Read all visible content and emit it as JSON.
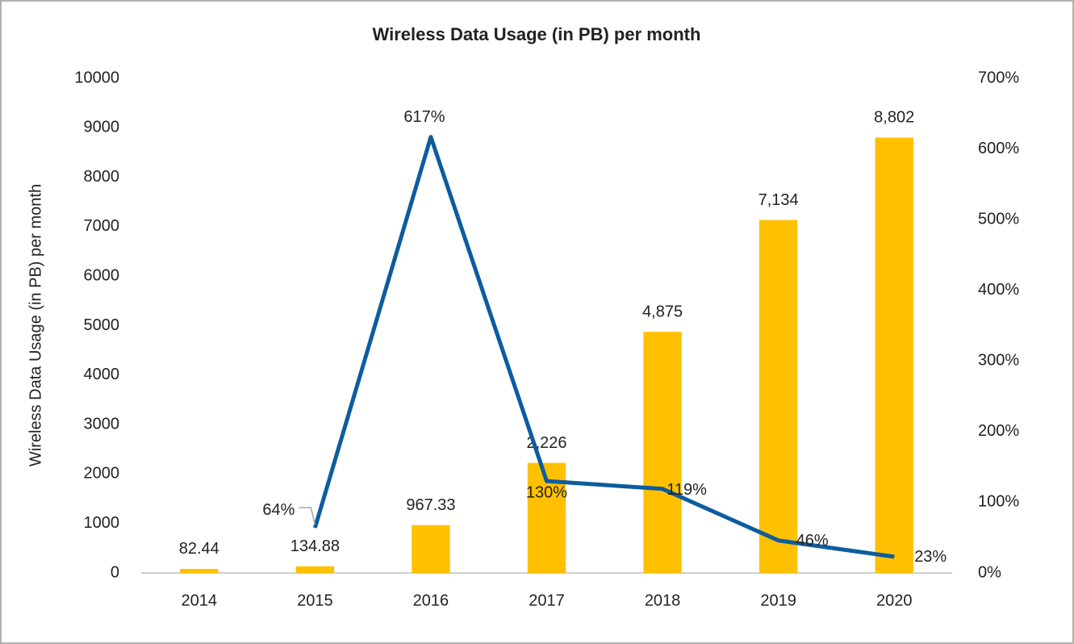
{
  "chart_data": {
    "type": "combo",
    "title": "Wireless Data Usage (in PB) per month",
    "ylabel": "Wireless Data Usage (in PB) per month",
    "categories": [
      "2014",
      "2015",
      "2016",
      "2017",
      "2018",
      "2019",
      "2020"
    ],
    "series": [
      {
        "type": "bar",
        "color": "#ffc000",
        "values": [
          82.44,
          134.88,
          967.33,
          2226,
          4875,
          7134,
          8802
        ],
        "value_labels": [
          "82.44",
          "134.88",
          "967.33",
          "2,226",
          "4,875",
          "7,134",
          "8,802"
        ]
      },
      {
        "type": "line",
        "axis": "y2",
        "color": "#0d5c9e",
        "values": [
          null,
          64,
          617,
          130,
          119,
          46,
          23
        ],
        "value_labels": [
          null,
          "64%",
          "617%",
          "130%",
          "119%",
          "46%",
          "23%"
        ]
      }
    ],
    "ylim": [
      0,
      10000
    ],
    "yticks": [
      0,
      1000,
      2000,
      3000,
      4000,
      5000,
      6000,
      7000,
      8000,
      9000,
      10000
    ],
    "y2lim": [
      0,
      700
    ],
    "y2ticks": [
      {
        "value": 0,
        "label": "0%"
      },
      {
        "value": 100,
        "label": "100%"
      },
      {
        "value": 200,
        "label": "200%"
      },
      {
        "value": 300,
        "label": "300%"
      },
      {
        "value": 400,
        "label": "400%"
      },
      {
        "value": 500,
        "label": "500%"
      },
      {
        "value": 600,
        "label": "600%"
      },
      {
        "value": 700,
        "label": "700%"
      }
    ],
    "grid": false
  }
}
